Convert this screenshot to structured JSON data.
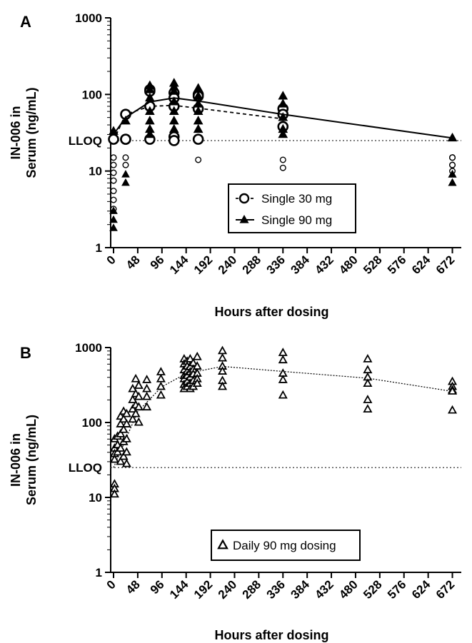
{
  "chart_data": [
    {
      "type": "scatter",
      "panel_label": "A",
      "ylabel": [
        "IN-006 in",
        "Serum (ng/mL)"
      ],
      "xlabel": "Hours after dosing",
      "yscale": "log",
      "ylim": [
        1,
        1000
      ],
      "yticks": [
        1,
        10,
        100,
        1000
      ],
      "ytick_labels": [
        "1",
        "10",
        "100",
        "1000"
      ],
      "xlim": [
        0,
        684
      ],
      "xticks": [
        0,
        48,
        96,
        144,
        192,
        240,
        288,
        336,
        384,
        432,
        480,
        528,
        576,
        624,
        672
      ],
      "xtick_labels": [
        "0",
        "48",
        "96",
        "144",
        "192",
        "240",
        "288",
        "336",
        "384",
        "432",
        "480",
        "528",
        "576",
        "624",
        "672"
      ],
      "lloq": 25,
      "lloq_label": "LLOQ",
      "legend": {
        "position": "center-right",
        "items": [
          {
            "label": "Single 30 mg",
            "marker": "open-circle",
            "line": "dashed"
          },
          {
            "label": "Single 90 mg",
            "marker": "filled-triangle",
            "line": "solid"
          }
        ]
      },
      "series": [
        {
          "name": "Single 30 mg",
          "marker": "open-circle",
          "mean_line": {
            "x": [
              0,
              24,
              72,
              120,
              168,
              336
            ],
            "y": [
              25,
              55,
              70,
              72,
              66,
              48
            ]
          },
          "points": [
            [
              0,
              15
            ],
            [
              0,
              12
            ],
            [
              0,
              9.5
            ],
            [
              0,
              7.5
            ],
            [
              0,
              5.5
            ],
            [
              0,
              4.2
            ],
            [
              0,
              3.2
            ],
            [
              0,
              26
            ],
            [
              24,
              55
            ],
            [
              24,
              26
            ],
            [
              24,
              26
            ],
            [
              24,
              15
            ],
            [
              24,
              12
            ],
            [
              72,
              115
            ],
            [
              72,
              110
            ],
            [
              72,
              70
            ],
            [
              72,
              26
            ],
            [
              120,
              105
            ],
            [
              120,
              90
            ],
            [
              120,
              70
            ],
            [
              120,
              28
            ],
            [
              120,
              25
            ],
            [
              168,
              100
            ],
            [
              168,
              95
            ],
            [
              168,
              65
            ],
            [
              168,
              26
            ],
            [
              168,
              14
            ],
            [
              336,
              65
            ],
            [
              336,
              55
            ],
            [
              336,
              38
            ],
            [
              336,
              14
            ],
            [
              336,
              11
            ],
            [
              672,
              15
            ],
            [
              672,
              15
            ],
            [
              672,
              15
            ],
            [
              672,
              12
            ],
            [
              672,
              12
            ],
            [
              672,
              10
            ]
          ]
        },
        {
          "name": "Single 90 mg",
          "marker": "filled-triangle",
          "mean_line": {
            "x": [
              0,
              24,
              72,
              120,
              168,
              336,
              672
            ],
            "y": [
              30,
              50,
              80,
              90,
              82,
              55,
              27
            ]
          },
          "points": [
            [
              0,
              33
            ],
            [
              0,
              3
            ],
            [
              0,
              2.3
            ],
            [
              0,
              1.8
            ],
            [
              24,
              45
            ],
            [
              24,
              9
            ],
            [
              24,
              7
            ],
            [
              72,
              130
            ],
            [
              72,
              115
            ],
            [
              72,
              90
            ],
            [
              72,
              60
            ],
            [
              72,
              45
            ],
            [
              72,
              35
            ],
            [
              72,
              30
            ],
            [
              120,
              140
            ],
            [
              120,
              125
            ],
            [
              120,
              110
            ],
            [
              120,
              80
            ],
            [
              120,
              60
            ],
            [
              120,
              45
            ],
            [
              120,
              35
            ],
            [
              168,
              120
            ],
            [
              168,
              95
            ],
            [
              168,
              75
            ],
            [
              168,
              60
            ],
            [
              168,
              45
            ],
            [
              168,
              35
            ],
            [
              336,
              95
            ],
            [
              336,
              75
            ],
            [
              336,
              50
            ],
            [
              336,
              35
            ],
            [
              336,
              30
            ],
            [
              672,
              27
            ],
            [
              672,
              9
            ],
            [
              672,
              9
            ],
            [
              672,
              9
            ],
            [
              672,
              7
            ],
            [
              672,
              7
            ],
            [
              672,
              7
            ]
          ]
        }
      ]
    },
    {
      "type": "scatter",
      "panel_label": "B",
      "ylabel": [
        "IN-006 in",
        "Serum (ng/mL)"
      ],
      "xlabel": "Hours after dosing",
      "yscale": "log",
      "ylim": [
        1,
        1000
      ],
      "yticks": [
        1,
        10,
        100,
        1000
      ],
      "ytick_labels": [
        "1",
        "10",
        "100",
        "1000"
      ],
      "xlim": [
        0,
        684
      ],
      "xticks": [
        0,
        48,
        96,
        144,
        192,
        240,
        288,
        336,
        384,
        432,
        480,
        528,
        576,
        624,
        672
      ],
      "xtick_labels": [
        "0",
        "48",
        "96",
        "144",
        "192",
        "240",
        "288",
        "336",
        "384",
        "432",
        "480",
        "528",
        "576",
        "624",
        "672"
      ],
      "lloq": 25,
      "lloq_label": "LLOQ",
      "legend": {
        "position": "bottom-right",
        "items": [
          {
            "label": "Daily 90 mg dosing",
            "marker": "open-triangle",
            "line": "none"
          }
        ]
      },
      "series": [
        {
          "name": "Daily 90 mg dosing",
          "marker": "open-triangle",
          "trend_line": {
            "x": [
              0,
              48,
              96,
              144,
              216,
              336,
              504,
              672
            ],
            "y": [
              25,
              140,
              300,
              450,
              560,
              480,
              390,
              260
            ]
          },
          "points": [
            [
              2,
              60
            ],
            [
              2,
              45
            ],
            [
              2,
              38
            ],
            [
              2,
              32
            ],
            [
              2,
              15
            ],
            [
              2,
              13
            ],
            [
              2,
              11
            ],
            [
              8,
              65
            ],
            [
              8,
              50
            ],
            [
              8,
              40
            ],
            [
              14,
              120
            ],
            [
              14,
              95
            ],
            [
              14,
              70
            ],
            [
              14,
              45
            ],
            [
              14,
              30
            ],
            [
              20,
              140
            ],
            [
              20,
              110
            ],
            [
              20,
              80
            ],
            [
              20,
              55
            ],
            [
              20,
              35
            ],
            [
              26,
              130
            ],
            [
              26,
              95
            ],
            [
              26,
              60
            ],
            [
              26,
              40
            ],
            [
              26,
              28
            ],
            [
              38,
              280
            ],
            [
              38,
              200
            ],
            [
              38,
              150
            ],
            [
              38,
              110
            ],
            [
              44,
              380
            ],
            [
              44,
              240
            ],
            [
              44,
              170
            ],
            [
              44,
              130
            ],
            [
              50,
              310
            ],
            [
              50,
              220
            ],
            [
              50,
              160
            ],
            [
              50,
              100
            ],
            [
              66,
              370
            ],
            [
              66,
              280
            ],
            [
              66,
              220
            ],
            [
              66,
              160
            ],
            [
              94,
              470
            ],
            [
              94,
              380
            ],
            [
              94,
              300
            ],
            [
              94,
              230
            ],
            [
              140,
              700
            ],
            [
              140,
              600
            ],
            [
              140,
              500
            ],
            [
              140,
              420
            ],
            [
              140,
              380
            ],
            [
              140,
              320
            ],
            [
              140,
              280
            ],
            [
              146,
              650
            ],
            [
              146,
              560
            ],
            [
              146,
              480
            ],
            [
              146,
              420
            ],
            [
              146,
              350
            ],
            [
              146,
              300
            ],
            [
              152,
              700
            ],
            [
              152,
              550
            ],
            [
              152,
              470
            ],
            [
              152,
              400
            ],
            [
              152,
              330
            ],
            [
              152,
              280
            ],
            [
              158,
              620
            ],
            [
              158,
              510
            ],
            [
              158,
              440
            ],
            [
              158,
              360
            ],
            [
              158,
              300
            ],
            [
              166,
              750
            ],
            [
              166,
              560
            ],
            [
              166,
              450
            ],
            [
              166,
              380
            ],
            [
              166,
              330
            ],
            [
              216,
              900
            ],
            [
              216,
              720
            ],
            [
              216,
              560
            ],
            [
              216,
              480
            ],
            [
              216,
              360
            ],
            [
              216,
              300
            ],
            [
              336,
              850
            ],
            [
              336,
              680
            ],
            [
              336,
              450
            ],
            [
              336,
              370
            ],
            [
              336,
              230
            ],
            [
              504,
              700
            ],
            [
              504,
              500
            ],
            [
              504,
              400
            ],
            [
              504,
              330
            ],
            [
              504,
              200
            ],
            [
              504,
              150
            ],
            [
              672,
              350
            ],
            [
              672,
              300
            ],
            [
              672,
              270
            ],
            [
              672,
              260
            ],
            [
              672,
              145
            ]
          ]
        }
      ]
    }
  ]
}
